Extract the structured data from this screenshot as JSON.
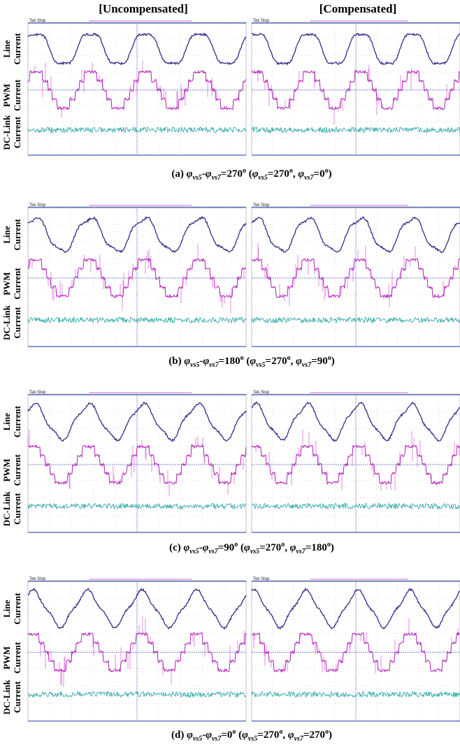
{
  "headers": [
    "[Uncompensated]",
    "[Compensated]"
  ],
  "side_labels": [
    [
      "Line",
      "Current"
    ],
    [
      "PWM",
      "Current"
    ],
    [
      "DC-Link",
      "Current"
    ]
  ],
  "scope_status": "Tek Stop",
  "captions": [
    [
      "(a) ",
      "φ",
      "vs5",
      "-",
      "φ",
      "vs7",
      "=270",
      "o",
      " (",
      "φ",
      "vs5",
      "=270",
      "o",
      ", ",
      "φ",
      "vs7",
      "=0",
      "o",
      ")"
    ],
    [
      "(b) ",
      "φ",
      "vs5",
      "-",
      "φ",
      "vs7",
      "=180",
      "o",
      " (",
      "φ",
      "vs5",
      "=270",
      "o",
      ", ",
      "φ",
      "vs7",
      "=90",
      "o",
      ")"
    ],
    [
      "(c) ",
      "φ",
      "vs5",
      "-",
      "φ",
      "vs7",
      "=90",
      "o",
      " (",
      "φ",
      "vs5",
      "=270",
      "o",
      ", ",
      "φ",
      "vs7",
      "=180",
      "o",
      ")"
    ],
    [
      "(d) ",
      "φ",
      "vs5",
      "-",
      "φ",
      "vs7",
      "=0",
      "o",
      " (",
      "φ",
      "vs5",
      "=270",
      "o",
      ", ",
      "φ",
      "vs7",
      "=270",
      "o",
      ")"
    ]
  ]
}
